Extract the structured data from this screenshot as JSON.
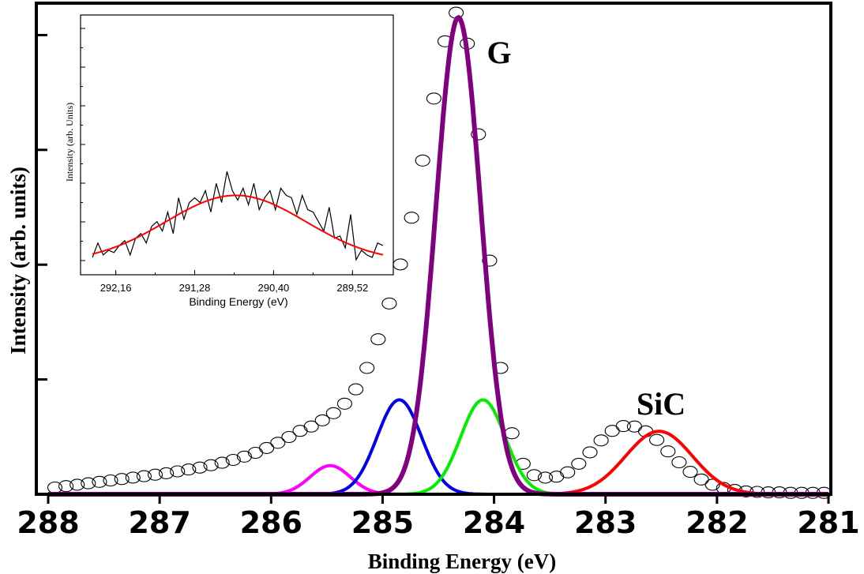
{
  "chart_data": [
    {
      "type": "line",
      "xlabel": "Binding Energy (eV)",
      "ylabel": "Intensity (arb. units)",
      "xlim": [
        288,
        281
      ],
      "x_reversed": true,
      "x_ticks": [
        "288",
        "287",
        "286",
        "285",
        "284",
        "283",
        "282",
        "281"
      ],
      "y_tick_labels": "none",
      "ylim": [
        0,
        1.03
      ],
      "annotations": [
        "G",
        "SiC"
      ],
      "measured": {
        "marker": "open-circle",
        "x": [
          287.94,
          287.84,
          287.74,
          287.64,
          287.54,
          287.44,
          287.34,
          287.24,
          287.14,
          287.04,
          286.94,
          286.84,
          286.74,
          286.64,
          286.54,
          286.44,
          286.34,
          286.24,
          286.14,
          286.04,
          285.94,
          285.84,
          285.74,
          285.64,
          285.54,
          285.44,
          285.34,
          285.24,
          285.14,
          285.04,
          284.94,
          284.84,
          284.74,
          284.64,
          284.54,
          284.44,
          284.34,
          284.24,
          284.14,
          284.04,
          283.94,
          283.84,
          283.74,
          283.64,
          283.54,
          283.44,
          283.34,
          283.24,
          283.14,
          283.04,
          282.94,
          282.84,
          282.74,
          282.64,
          282.54,
          282.44,
          282.34,
          282.24,
          282.14,
          282.04,
          281.94,
          281.84,
          281.74,
          281.64,
          281.54,
          281.44,
          281.34,
          281.24,
          281.14,
          281.04
        ],
        "y": [
          0.014,
          0.017,
          0.02,
          0.023,
          0.026,
          0.029,
          0.032,
          0.035,
          0.038,
          0.041,
          0.044,
          0.048,
          0.052,
          0.056,
          0.061,
          0.066,
          0.072,
          0.079,
          0.087,
          0.097,
          0.108,
          0.12,
          0.133,
          0.142,
          0.155,
          0.17,
          0.19,
          0.22,
          0.265,
          0.325,
          0.4,
          0.482,
          0.58,
          0.7,
          0.83,
          0.95,
          1.01,
          0.945,
          0.755,
          0.49,
          0.265,
          0.128,
          0.064,
          0.04,
          0.035,
          0.037,
          0.046,
          0.064,
          0.088,
          0.113,
          0.133,
          0.143,
          0.142,
          0.132,
          0.114,
          0.09,
          0.067,
          0.047,
          0.031,
          0.02,
          0.013,
          0.009,
          0.006,
          0.005,
          0.004,
          0.004,
          0.003,
          0.003,
          0.003,
          0.003
        ]
      },
      "series": [
        {
          "color": "#800080",
          "center": 284.32,
          "amplitude": 1.0,
          "sigma": 0.2
        },
        {
          "color": "#0000ee",
          "center": 284.85,
          "amplitude": 0.198,
          "sigma": 0.2
        },
        {
          "color": "#00ee00",
          "center": 284.1,
          "amplitude": 0.198,
          "sigma": 0.2
        },
        {
          "color": "#ff00ff",
          "center": 285.47,
          "amplitude": 0.06,
          "sigma": 0.18
        },
        {
          "color": "#ff0000",
          "center": 282.52,
          "amplitude": 0.132,
          "sigma": 0.3
        }
      ]
    },
    {
      "type": "line",
      "xlabel": "Binding Energy (eV)",
      "ylabel": "Intensity (arb. Units)",
      "xlim": [
        292.5,
        289.1
      ],
      "x_reversed": true,
      "x_ticks": [
        "292,16",
        "291,28",
        "290,40",
        "289,52"
      ],
      "y_tick_labels": "none",
      "ylim": [
        0,
        1
      ],
      "series": [
        {
          "color": "#000000",
          "x": [
            292.42,
            292.36,
            292.3,
            292.24,
            292.18,
            292.12,
            292.06,
            292.0,
            291.94,
            291.88,
            291.82,
            291.76,
            291.7,
            291.64,
            291.58,
            291.52,
            291.46,
            291.4,
            291.34,
            291.28,
            291.22,
            291.16,
            291.1,
            291.04,
            290.98,
            290.92,
            290.86,
            290.8,
            290.74,
            290.68,
            290.62,
            290.56,
            290.5,
            290.44,
            290.38,
            290.32,
            290.26,
            290.2,
            290.14,
            290.08,
            290.02,
            289.96,
            289.9,
            289.84,
            289.78,
            289.72,
            289.66,
            289.6,
            289.54,
            289.48,
            289.42,
            289.36,
            289.3,
            289.24,
            289.18
          ],
          "y": [
            0.02,
            0.08,
            0.03,
            0.05,
            0.04,
            0.07,
            0.09,
            0.03,
            0.1,
            0.12,
            0.08,
            0.15,
            0.17,
            0.13,
            0.21,
            0.12,
            0.27,
            0.18,
            0.25,
            0.27,
            0.25,
            0.3,
            0.21,
            0.33,
            0.25,
            0.38,
            0.3,
            0.26,
            0.31,
            0.24,
            0.33,
            0.22,
            0.27,
            0.3,
            0.22,
            0.31,
            0.28,
            0.27,
            0.2,
            0.28,
            0.22,
            0.21,
            0.17,
            0.13,
            0.23,
            0.1,
            0.11,
            0.06,
            0.2,
            0.01,
            0.05,
            0.03,
            0.02,
            0.08,
            0.07
          ]
        },
        {
          "color": "#ff0000",
          "fit": "gaussian",
          "center": 290.82,
          "amplitude": 0.28,
          "sigma": 0.78,
          "baseline": 0.0
        }
      ]
    }
  ]
}
